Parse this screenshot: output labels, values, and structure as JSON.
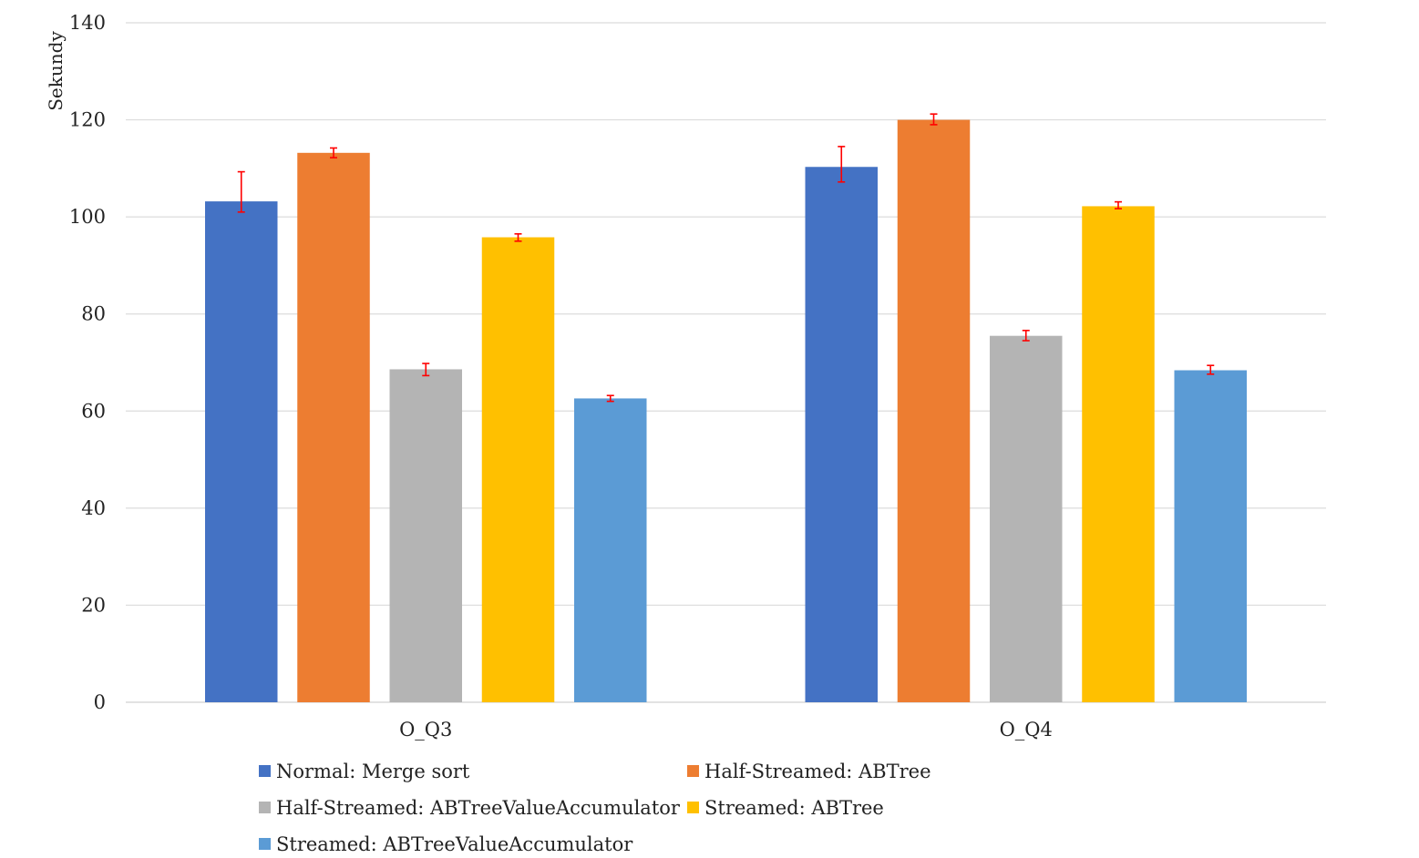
{
  "chart_data": {
    "type": "bar",
    "ylabel": "Sekundy",
    "xlabel": "",
    "ylim": [
      0,
      140
    ],
    "yticks": [
      0,
      20,
      40,
      60,
      80,
      100,
      120,
      140
    ],
    "grid": true,
    "legend_position": "bottom",
    "categories": [
      "O_Q3",
      "O_Q4"
    ],
    "series": [
      {
        "name": "Normal: Merge sort",
        "color": "#4472C4",
        "values": [
          103.2,
          110.3
        ],
        "error_low": [
          101.0,
          107.2
        ],
        "error_high": [
          109.3,
          114.5
        ]
      },
      {
        "name": "Half-Streamed: ABTree",
        "color": "#ED7D31",
        "values": [
          113.2,
          120.0
        ],
        "error_low": [
          112.2,
          119.0
        ],
        "error_high": [
          114.2,
          121.2
        ]
      },
      {
        "name": "Half-Streamed: ABTreeValueAccumulator",
        "color": "#B4B4B4",
        "values": [
          68.6,
          75.5
        ],
        "error_low": [
          67.3,
          74.5
        ],
        "error_high": [
          69.8,
          76.6
        ]
      },
      {
        "name": "Streamed: ABTree",
        "color": "#FFC000",
        "values": [
          95.8,
          102.2
        ],
        "error_low": [
          95.0,
          101.7
        ],
        "error_high": [
          96.5,
          103.1
        ]
      },
      {
        "name": "Streamed: ABTreeValueAccumulator",
        "color": "#5B9BD5",
        "values": [
          62.6,
          68.4
        ],
        "error_low": [
          62.0,
          67.6
        ],
        "error_high": [
          63.2,
          69.4
        ]
      }
    ],
    "error_bar_color": "#FF0000"
  }
}
